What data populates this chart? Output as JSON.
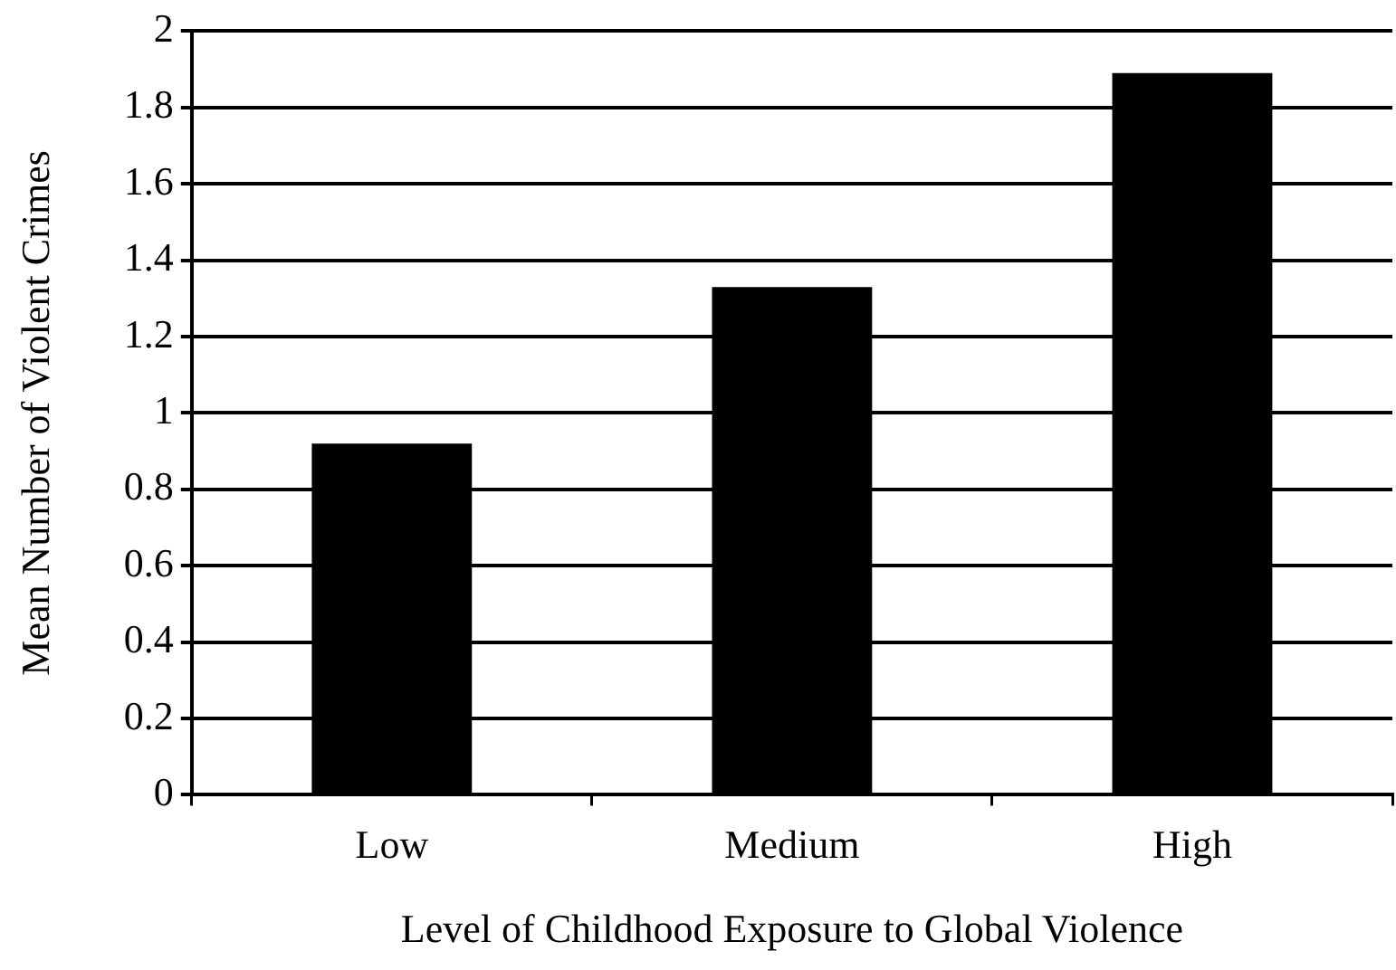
{
  "chart_data": {
    "type": "bar",
    "xlabel": "Level of Childhood Exposure to Global Violence",
    "ylabel": "Mean Number of Violent Crimes",
    "categories": [
      "Low",
      "Medium",
      "High"
    ],
    "values": [
      0.92,
      1.33,
      1.89
    ],
    "color": "#000000",
    "ylim": [
      0,
      2
    ],
    "yticks": [
      0,
      0.2,
      0.4,
      0.6,
      0.8,
      1,
      1.2,
      1.4,
      1.6,
      1.8,
      2
    ],
    "grid": "y",
    "legend": false
  }
}
